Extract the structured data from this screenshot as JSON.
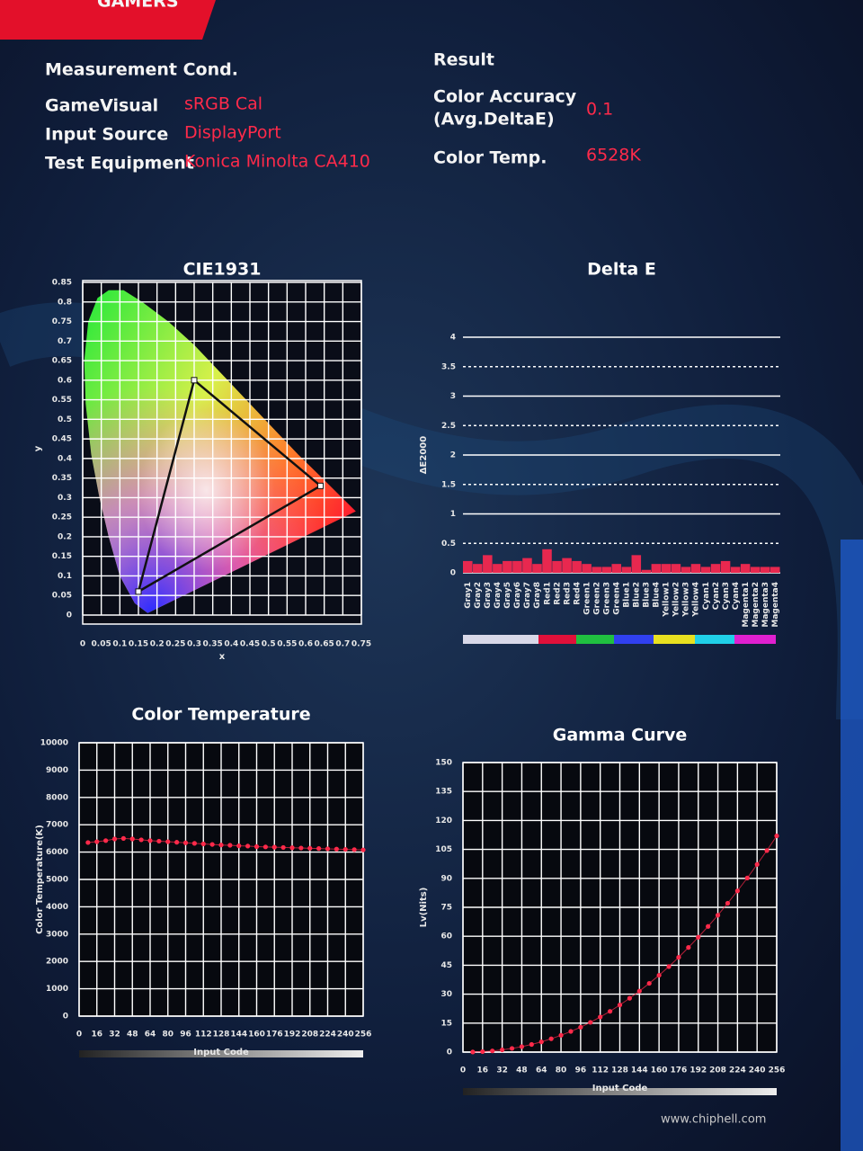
{
  "report": {
    "brand": "GAMERS",
    "conditions": {
      "title": "Measurement Cond.",
      "rows": [
        [
          "GameVisual",
          "sRGB Cal"
        ],
        [
          "Input Source",
          "DisplayPort"
        ],
        [
          "Test Equipment",
          "Konica Minolta CA410"
        ]
      ]
    },
    "result": {
      "title": "Result",
      "rows": [
        {
          "label": [
            "Color Accuracy",
            "(Avg.DeltaE)"
          ],
          "value": "0.1"
        },
        {
          "label": [
            "Color Temp."
          ],
          "value": "6528K"
        }
      ]
    },
    "watermark": "www.chiphell.com"
  },
  "chart_data": [
    {
      "type": "scatter",
      "title": "CIE1931",
      "x_label": "x",
      "y_label": "y",
      "x": [
        0.64,
        0.3,
        0.15
      ],
      "values": [
        0.33,
        0.6,
        0.06
      ],
      "color": "#111111",
      "xlim": [
        0,
        0.75
      ],
      "ylim": [
        0,
        0.85
      ],
      "xticks": [
        0,
        0.05,
        0.1,
        0.15,
        0.2,
        0.25,
        0.3,
        0.35,
        0.4,
        0.45,
        0.5,
        0.55,
        0.6,
        0.65,
        0.7,
        0.75
      ],
      "yticks": [
        0,
        0.05,
        0.1,
        0.15,
        0.2,
        0.25,
        0.3,
        0.35,
        0.4,
        0.45,
        0.5,
        0.55,
        0.6,
        0.65,
        0.7,
        0.75,
        0.8,
        0.85
      ],
      "grid": true
    },
    {
      "type": "bar",
      "title": "Delta E",
      "y_label": "ΔE2000",
      "categories": [
        "Gray1",
        "Gray2",
        "Gray3",
        "Gray4",
        "Gray5",
        "Gray6",
        "Gray7",
        "Gray8",
        "Red1",
        "Red2",
        "Red3",
        "Red4",
        "Green1",
        "Green2",
        "Green3",
        "Green4",
        "Blue1",
        "Blue2",
        "Blue3",
        "Blue4",
        "Yellow1",
        "Yellow2",
        "Yellow3",
        "Yellow4",
        "Cyan1",
        "Cyan2",
        "Cyan3",
        "Cyan4",
        "Magenta1",
        "Magenta2",
        "Magenta3",
        "Magenta4"
      ],
      "values": [
        0.2,
        0.15,
        0.3,
        0.15,
        0.2,
        0.2,
        0.25,
        0.15,
        0.4,
        0.2,
        0.25,
        0.2,
        0.15,
        0.1,
        0.1,
        0.15,
        0.1,
        0.3,
        0.05,
        0.15,
        0.15,
        0.15,
        0.1,
        0.15,
        0.1,
        0.15,
        0.2,
        0.1,
        0.15,
        0.1,
        0.1,
        0.1
      ],
      "color": "#e8284f",
      "ylim": [
        0,
        4
      ],
      "yticks": [
        0,
        0.5,
        1,
        1.5,
        2,
        2.5,
        3,
        3.5,
        4
      ],
      "grid": true
    },
    {
      "type": "line",
      "title": "Color Temperature",
      "x_label": "Input Code",
      "y_label": "Color Temperature(K)",
      "x": [
        8,
        16,
        24,
        32,
        40,
        48,
        56,
        64,
        72,
        80,
        88,
        96,
        104,
        112,
        120,
        128,
        136,
        144,
        152,
        160,
        168,
        176,
        184,
        192,
        200,
        208,
        216,
        224,
        232,
        240,
        248,
        256
      ],
      "values": [
        6350,
        6380,
        6420,
        6480,
        6500,
        6480,
        6450,
        6420,
        6400,
        6380,
        6360,
        6340,
        6320,
        6300,
        6280,
        6260,
        6250,
        6230,
        6220,
        6200,
        6190,
        6180,
        6170,
        6160,
        6150,
        6140,
        6130,
        6120,
        6110,
        6100,
        6090,
        6080
      ],
      "color": "#ff2a4a",
      "xlim": [
        0,
        256
      ],
      "ylim": [
        0,
        10000
      ],
      "xticks": [
        0,
        16,
        32,
        48,
        64,
        80,
        96,
        112,
        128,
        144,
        160,
        176,
        192,
        208,
        224,
        240,
        256
      ],
      "yticks": [
        0,
        1000,
        2000,
        3000,
        4000,
        5000,
        6000,
        7000,
        8000,
        9000,
        10000
      ],
      "grid": true
    },
    {
      "type": "line",
      "title": "Gamma Curve",
      "x_label": "Input Code",
      "y_label": "Lv(Nits)",
      "x": [
        8,
        16,
        24,
        32,
        40,
        48,
        56,
        64,
        72,
        80,
        88,
        96,
        104,
        112,
        120,
        128,
        136,
        144,
        152,
        160,
        168,
        176,
        184,
        192,
        200,
        208,
        216,
        224,
        232,
        240,
        248,
        256
      ],
      "values": [
        0.05,
        0.25,
        0.61,
        1.15,
        1.89,
        2.82,
        3.95,
        5.3,
        6.9,
        8.7,
        10.7,
        12.9,
        15.4,
        18.2,
        21.1,
        24.4,
        27.9,
        31.6,
        35.6,
        39.8,
        44.3,
        49.1,
        54.2,
        59.5,
        65.1,
        70.9,
        77.1,
        83.5,
        90.2,
        97.2,
        104.4,
        112
      ],
      "color": "#ff2a4a",
      "xlim": [
        0,
        256
      ],
      "ylim": [
        0,
        150
      ],
      "xticks": [
        0,
        16,
        32,
        48,
        64,
        80,
        96,
        112,
        128,
        144,
        160,
        176,
        192,
        208,
        224,
        240,
        256
      ],
      "yticks": [
        0,
        15,
        30,
        45,
        60,
        75,
        90,
        105,
        120,
        135,
        150
      ],
      "grid": true
    }
  ]
}
